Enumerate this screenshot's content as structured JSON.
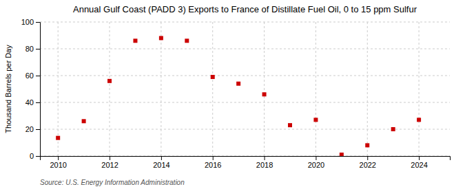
{
  "chart_data": {
    "type": "scatter",
    "title": "Annual Gulf Coast (PADD 3) Exports to France of Distillate Fuel Oil, 0 to 15 ppm Sulfur",
    "ylabel": "Thousand Barrels per Day",
    "source": "Source: U.S. Energy Information Administration",
    "x": [
      2010,
      2011,
      2012,
      2013,
      2014,
      2015,
      2016,
      2017,
      2018,
      2019,
      2020,
      2021,
      2022,
      2023,
      2024
    ],
    "values": [
      13.5,
      26.0,
      56.0,
      86.0,
      88.0,
      86.0,
      59.0,
      54.0,
      46.0,
      23.0,
      27.0,
      1.0,
      8.0,
      20.0,
      27.0
    ],
    "color": "#cc0000",
    "marker": "square",
    "xlim": [
      2009.3,
      2025.2
    ],
    "xticks": [
      2010,
      2012,
      2014,
      2016,
      2018,
      2020,
      2022,
      2024
    ],
    "ylim": [
      0,
      100
    ],
    "yticks": [
      0,
      20,
      40,
      60,
      80,
      100
    ],
    "grid": true
  }
}
